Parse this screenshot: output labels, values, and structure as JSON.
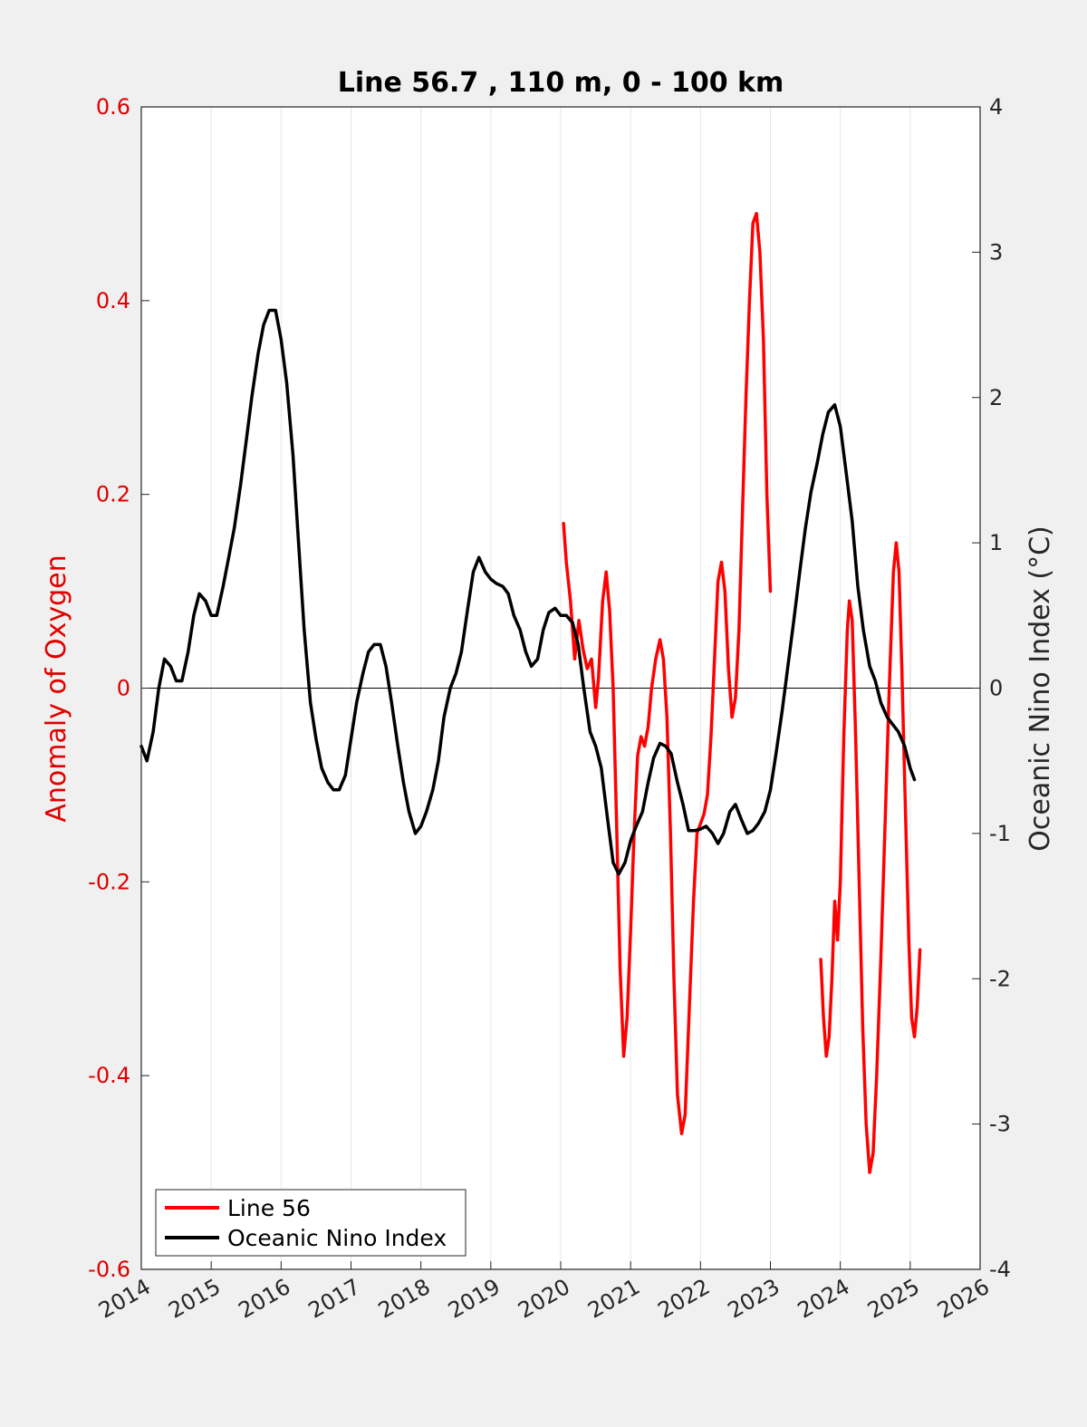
{
  "chart_data": {
    "type": "line",
    "title": "Line 56.7 , 110 m, 0 - 100 km",
    "xlabel": "",
    "ylabel_left": "Anomaly of Oxygen",
    "ylabel_right": "Oceanic Nino Index (°C)",
    "xlim": [
      2014,
      2026
    ],
    "ylim_left": [
      -0.6,
      0.6
    ],
    "ylim_right": [
      -4,
      4
    ],
    "x_ticks": [
      2014,
      2015,
      2016,
      2017,
      2018,
      2019,
      2020,
      2021,
      2022,
      2023,
      2024,
      2025,
      2026
    ],
    "x_tick_labels": [
      "2014",
      "2015",
      "2016",
      "2017",
      "2018",
      "2019",
      "2020",
      "2021",
      "2022",
      "2023",
      "2024",
      "2025",
      "2026"
    ],
    "y_left_ticks": [
      -0.6,
      -0.4,
      -0.2,
      0,
      0.2,
      0.4,
      0.6
    ],
    "y_left_tick_labels": [
      "-0.6",
      "-0.4",
      "-0.2",
      "0",
      "0.2",
      "0.4",
      "0.6"
    ],
    "y_right_ticks": [
      -4,
      -3,
      -2,
      -1,
      0,
      1,
      2,
      3,
      4
    ],
    "y_right_tick_labels": [
      "-4",
      "-3",
      "-2",
      "-1",
      "0",
      "1",
      "2",
      "3",
      "4"
    ],
    "grid": "vertical",
    "zero_line": true,
    "legend_position": "bottom-left",
    "colors": {
      "line56": "#ff0000",
      "oni": "#000000",
      "left_axis": "#e00000"
    },
    "series": [
      {
        "name": "Line 56",
        "axis": "left",
        "color": "#ff0000",
        "segments": [
          [
            [
              2020.04,
              0.17
            ],
            [
              2020.08,
              0.13
            ],
            [
              2020.14,
              0.09
            ],
            [
              2020.18,
              0.05
            ],
            [
              2020.2,
              0.03
            ],
            [
              2020.26,
              0.07
            ],
            [
              2020.32,
              0.04
            ],
            [
              2020.38,
              0.02
            ],
            [
              2020.44,
              0.03
            ],
            [
              2020.5,
              -0.02
            ],
            [
              2020.54,
              0.01
            ],
            [
              2020.6,
              0.09
            ],
            [
              2020.65,
              0.12
            ],
            [
              2020.7,
              0.08
            ],
            [
              2020.75,
              0.0
            ],
            [
              2020.8,
              -0.14
            ],
            [
              2020.85,
              -0.29
            ],
            [
              2020.9,
              -0.38
            ],
            [
              2020.95,
              -0.34
            ],
            [
              2021.0,
              -0.25
            ],
            [
              2021.05,
              -0.15
            ],
            [
              2021.1,
              -0.07
            ],
            [
              2021.15,
              -0.05
            ],
            [
              2021.2,
              -0.06
            ],
            [
              2021.25,
              -0.04
            ],
            [
              2021.3,
              0.0
            ],
            [
              2021.36,
              0.03
            ],
            [
              2021.42,
              0.05
            ],
            [
              2021.47,
              0.03
            ],
            [
              2021.52,
              -0.03
            ],
            [
              2021.57,
              -0.15
            ],
            [
              2021.62,
              -0.3
            ],
            [
              2021.67,
              -0.42
            ],
            [
              2021.73,
              -0.46
            ],
            [
              2021.78,
              -0.44
            ],
            [
              2021.84,
              -0.33
            ],
            [
              2021.9,
              -0.22
            ],
            [
              2021.95,
              -0.15
            ],
            [
              2022.0,
              -0.14
            ],
            [
              2022.05,
              -0.13
            ],
            [
              2022.1,
              -0.11
            ],
            [
              2022.15,
              -0.05
            ],
            [
              2022.2,
              0.03
            ],
            [
              2022.25,
              0.11
            ],
            [
              2022.3,
              0.13
            ],
            [
              2022.35,
              0.1
            ],
            [
              2022.4,
              0.02
            ],
            [
              2022.45,
              -0.03
            ],
            [
              2022.5,
              -0.01
            ],
            [
              2022.55,
              0.06
            ],
            [
              2022.6,
              0.18
            ],
            [
              2022.65,
              0.3
            ],
            [
              2022.7,
              0.4
            ],
            [
              2022.75,
              0.48
            ],
            [
              2022.8,
              0.49
            ],
            [
              2022.85,
              0.45
            ],
            [
              2022.9,
              0.36
            ],
            [
              2022.95,
              0.2
            ],
            [
              2023.0,
              0.1
            ]
          ],
          [
            [
              2023.72,
              -0.28
            ],
            [
              2023.76,
              -0.34
            ],
            [
              2023.8,
              -0.38
            ],
            [
              2023.84,
              -0.36
            ],
            [
              2023.88,
              -0.3
            ],
            [
              2023.92,
              -0.22
            ],
            [
              2023.96,
              -0.26
            ],
            [
              2024.0,
              -0.2
            ],
            [
              2024.05,
              -0.05
            ],
            [
              2024.1,
              0.06
            ],
            [
              2024.13,
              0.09
            ],
            [
              2024.17,
              0.07
            ],
            [
              2024.22,
              -0.05
            ],
            [
              2024.27,
              -0.2
            ],
            [
              2024.32,
              -0.35
            ],
            [
              2024.37,
              -0.45
            ],
            [
              2024.42,
              -0.5
            ],
            [
              2024.47,
              -0.48
            ],
            [
              2024.52,
              -0.4
            ],
            [
              2024.58,
              -0.28
            ],
            [
              2024.64,
              -0.14
            ],
            [
              2024.7,
              0.0
            ],
            [
              2024.76,
              0.12
            ],
            [
              2024.8,
              0.15
            ],
            [
              2024.84,
              0.12
            ],
            [
              2024.88,
              0.02
            ],
            [
              2024.93,
              -0.12
            ],
            [
              2024.98,
              -0.26
            ],
            [
              2025.02,
              -0.34
            ],
            [
              2025.06,
              -0.36
            ],
            [
              2025.1,
              -0.33
            ],
            [
              2025.14,
              -0.27
            ]
          ]
        ]
      },
      {
        "name": "Oceanic Nino Index",
        "axis": "right",
        "color": "#000000",
        "points": [
          [
            2014.0,
            -0.4
          ],
          [
            2014.08,
            -0.5
          ],
          [
            2014.17,
            -0.3
          ],
          [
            2014.25,
            0.0
          ],
          [
            2014.33,
            0.2
          ],
          [
            2014.42,
            0.15
          ],
          [
            2014.5,
            0.05
          ],
          [
            2014.58,
            0.05
          ],
          [
            2014.67,
            0.25
          ],
          [
            2014.75,
            0.5
          ],
          [
            2014.83,
            0.65
          ],
          [
            2014.92,
            0.6
          ],
          [
            2015.0,
            0.5
          ],
          [
            2015.08,
            0.5
          ],
          [
            2015.17,
            0.7
          ],
          [
            2015.25,
            0.9
          ],
          [
            2015.33,
            1.1
          ],
          [
            2015.42,
            1.4
          ],
          [
            2015.5,
            1.7
          ],
          [
            2015.58,
            2.0
          ],
          [
            2015.67,
            2.3
          ],
          [
            2015.75,
            2.5
          ],
          [
            2015.83,
            2.6
          ],
          [
            2015.92,
            2.6
          ],
          [
            2016.0,
            2.4
          ],
          [
            2016.08,
            2.1
          ],
          [
            2016.17,
            1.6
          ],
          [
            2016.25,
            1.0
          ],
          [
            2016.33,
            0.4
          ],
          [
            2016.42,
            -0.1
          ],
          [
            2016.5,
            -0.35
          ],
          [
            2016.58,
            -0.55
          ],
          [
            2016.67,
            -0.65
          ],
          [
            2016.75,
            -0.7
          ],
          [
            2016.83,
            -0.7
          ],
          [
            2016.92,
            -0.6
          ],
          [
            2017.0,
            -0.35
          ],
          [
            2017.08,
            -0.1
          ],
          [
            2017.17,
            0.1
          ],
          [
            2017.25,
            0.25
          ],
          [
            2017.33,
            0.3
          ],
          [
            2017.42,
            0.3
          ],
          [
            2017.5,
            0.15
          ],
          [
            2017.58,
            -0.1
          ],
          [
            2017.67,
            -0.4
          ],
          [
            2017.75,
            -0.65
          ],
          [
            2017.83,
            -0.85
          ],
          [
            2017.92,
            -1.0
          ],
          [
            2018.0,
            -0.95
          ],
          [
            2018.08,
            -0.85
          ],
          [
            2018.17,
            -0.7
          ],
          [
            2018.25,
            -0.5
          ],
          [
            2018.33,
            -0.2
          ],
          [
            2018.42,
            0.0
          ],
          [
            2018.5,
            0.1
          ],
          [
            2018.58,
            0.25
          ],
          [
            2018.67,
            0.55
          ],
          [
            2018.75,
            0.8
          ],
          [
            2018.83,
            0.9
          ],
          [
            2018.92,
            0.8
          ],
          [
            2019.0,
            0.75
          ],
          [
            2019.08,
            0.72
          ],
          [
            2019.17,
            0.7
          ],
          [
            2019.25,
            0.65
          ],
          [
            2019.33,
            0.5
          ],
          [
            2019.42,
            0.4
          ],
          [
            2019.5,
            0.25
          ],
          [
            2019.58,
            0.15
          ],
          [
            2019.67,
            0.2
          ],
          [
            2019.75,
            0.4
          ],
          [
            2019.83,
            0.52
          ],
          [
            2019.92,
            0.55
          ],
          [
            2020.0,
            0.5
          ],
          [
            2020.08,
            0.5
          ],
          [
            2020.17,
            0.45
          ],
          [
            2020.25,
            0.3
          ],
          [
            2020.33,
            0.0
          ],
          [
            2020.42,
            -0.3
          ],
          [
            2020.5,
            -0.4
          ],
          [
            2020.58,
            -0.55
          ],
          [
            2020.67,
            -0.9
          ],
          [
            2020.75,
            -1.2
          ],
          [
            2020.83,
            -1.28
          ],
          [
            2020.92,
            -1.2
          ],
          [
            2021.0,
            -1.05
          ],
          [
            2021.08,
            -0.95
          ],
          [
            2021.17,
            -0.85
          ],
          [
            2021.25,
            -0.65
          ],
          [
            2021.33,
            -0.48
          ],
          [
            2021.42,
            -0.38
          ],
          [
            2021.5,
            -0.4
          ],
          [
            2021.58,
            -0.45
          ],
          [
            2021.67,
            -0.65
          ],
          [
            2021.75,
            -0.8
          ],
          [
            2021.83,
            -0.98
          ],
          [
            2021.92,
            -0.98
          ],
          [
            2022.0,
            -0.97
          ],
          [
            2022.08,
            -0.95
          ],
          [
            2022.17,
            -1.0
          ],
          [
            2022.25,
            -1.07
          ],
          [
            2022.33,
            -1.0
          ],
          [
            2022.42,
            -0.85
          ],
          [
            2022.5,
            -0.8
          ],
          [
            2022.58,
            -0.9
          ],
          [
            2022.67,
            -1.0
          ],
          [
            2022.75,
            -0.98
          ],
          [
            2022.83,
            -0.93
          ],
          [
            2022.92,
            -0.85
          ],
          [
            2023.0,
            -0.7
          ],
          [
            2023.08,
            -0.45
          ],
          [
            2023.17,
            -0.15
          ],
          [
            2023.25,
            0.15
          ],
          [
            2023.33,
            0.45
          ],
          [
            2023.42,
            0.8
          ],
          [
            2023.5,
            1.1
          ],
          [
            2023.58,
            1.35
          ],
          [
            2023.67,
            1.55
          ],
          [
            2023.75,
            1.75
          ],
          [
            2023.83,
            1.9
          ],
          [
            2023.92,
            1.95
          ],
          [
            2024.0,
            1.8
          ],
          [
            2024.08,
            1.5
          ],
          [
            2024.17,
            1.15
          ],
          [
            2024.25,
            0.7
          ],
          [
            2024.33,
            0.4
          ],
          [
            2024.42,
            0.15
          ],
          [
            2024.5,
            0.05
          ],
          [
            2024.58,
            -0.1
          ],
          [
            2024.67,
            -0.2
          ],
          [
            2024.75,
            -0.25
          ],
          [
            2024.83,
            -0.3
          ],
          [
            2024.92,
            -0.4
          ],
          [
            2025.0,
            -0.55
          ],
          [
            2025.06,
            -0.63
          ]
        ]
      }
    ]
  }
}
